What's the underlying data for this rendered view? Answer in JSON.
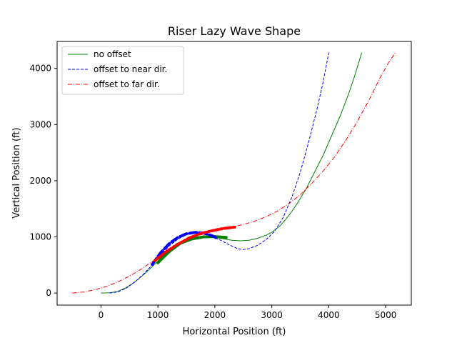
{
  "chart_data": {
    "type": "line",
    "title": "Riser Lazy Wave Shape",
    "xlabel": "Horizontal Position (ft)",
    "ylabel": "Vertical Position (ft)",
    "xlim": [
      -770,
      5450
    ],
    "ylim": [
      -215,
      4480
    ],
    "xticks": [
      0,
      1000,
      2000,
      3000,
      4000,
      5000
    ],
    "yticks": [
      0,
      1000,
      2000,
      3000,
      4000
    ],
    "xtick_labels": [
      "0",
      "1000",
      "2000",
      "3000",
      "4000",
      "5000"
    ],
    "ytick_labels": [
      "0",
      "1000",
      "2000",
      "3000",
      "4000"
    ],
    "grid": false,
    "legend_position": "top-left",
    "series": [
      {
        "name": "no offset",
        "color": "#008000",
        "dash": "solid",
        "points": [
          [
            0,
            0
          ],
          [
            150,
            5
          ],
          [
            300,
            30
          ],
          [
            450,
            100
          ],
          [
            600,
            200
          ],
          [
            750,
            330
          ],
          [
            900,
            470
          ],
          [
            1000,
            570
          ],
          [
            1100,
            680
          ],
          [
            1250,
            800
          ],
          [
            1400,
            890
          ],
          [
            1550,
            950
          ],
          [
            1700,
            985
          ],
          [
            1850,
            1000
          ],
          [
            2000,
            990
          ],
          [
            2150,
            965
          ],
          [
            2300,
            940
          ],
          [
            2450,
            930
          ],
          [
            2600,
            940
          ],
          [
            2750,
            975
          ],
          [
            2900,
            1030
          ],
          [
            3000,
            1080
          ],
          [
            3150,
            1200
          ],
          [
            3300,
            1380
          ],
          [
            3450,
            1600
          ],
          [
            3600,
            1850
          ],
          [
            3750,
            2150
          ],
          [
            3900,
            2450
          ],
          [
            4050,
            2800
          ],
          [
            4200,
            3150
          ],
          [
            4350,
            3550
          ],
          [
            4450,
            3850
          ],
          [
            4580,
            4280
          ]
        ],
        "buoyancy_segment": [
          [
            1000,
            540
          ],
          [
            1200,
            740
          ],
          [
            1400,
            890
          ],
          [
            1600,
            965
          ],
          [
            1800,
            1000
          ],
          [
            2000,
            1005
          ],
          [
            2200,
            990
          ]
        ]
      },
      {
        "name": "offset to near dir.",
        "color": "#0000ff",
        "dash": "dashed",
        "points": [
          [
            150,
            0
          ],
          [
            300,
            20
          ],
          [
            450,
            90
          ],
          [
            600,
            200
          ],
          [
            750,
            340
          ],
          [
            900,
            500
          ],
          [
            1050,
            680
          ],
          [
            1200,
            840
          ],
          [
            1350,
            960
          ],
          [
            1500,
            1040
          ],
          [
            1650,
            1070
          ],
          [
            1800,
            1060
          ],
          [
            1950,
            1010
          ],
          [
            2100,
            940
          ],
          [
            2250,
            860
          ],
          [
            2400,
            790
          ],
          [
            2500,
            775
          ],
          [
            2600,
            790
          ],
          [
            2750,
            850
          ],
          [
            2900,
            950
          ],
          [
            3050,
            1100
          ],
          [
            3200,
            1350
          ],
          [
            3350,
            1700
          ],
          [
            3500,
            2150
          ],
          [
            3650,
            2700
          ],
          [
            3800,
            3300
          ],
          [
            3900,
            3750
          ],
          [
            4000,
            4280
          ]
        ],
        "buoyancy_segment": [
          [
            900,
            510
          ],
          [
            1050,
            720
          ],
          [
            1200,
            880
          ],
          [
            1350,
            990
          ],
          [
            1500,
            1055
          ],
          [
            1650,
            1080
          ],
          [
            1800,
            1070
          ],
          [
            1950,
            1020
          ],
          [
            2050,
            970
          ]
        ]
      },
      {
        "name": "offset to far dir.",
        "color": "#ff0000",
        "dash": "dashdot",
        "points": [
          [
            -500,
            0
          ],
          [
            -300,
            20
          ],
          [
            -100,
            60
          ],
          [
            100,
            120
          ],
          [
            300,
            200
          ],
          [
            500,
            300
          ],
          [
            700,
            420
          ],
          [
            900,
            560
          ],
          [
            1100,
            700
          ],
          [
            1300,
            830
          ],
          [
            1500,
            940
          ],
          [
            1700,
            1020
          ],
          [
            1900,
            1080
          ],
          [
            2100,
            1130
          ],
          [
            2300,
            1175
          ],
          [
            2500,
            1220
          ],
          [
            2700,
            1280
          ],
          [
            2900,
            1360
          ],
          [
            3100,
            1460
          ],
          [
            3300,
            1590
          ],
          [
            3500,
            1750
          ],
          [
            3700,
            1950
          ],
          [
            3900,
            2170
          ],
          [
            4100,
            2420
          ],
          [
            4300,
            2720
          ],
          [
            4500,
            3050
          ],
          [
            4700,
            3420
          ],
          [
            4900,
            3830
          ],
          [
            5050,
            4100
          ],
          [
            5170,
            4280
          ]
        ],
        "buoyancy_segment": [
          [
            950,
            580
          ],
          [
            1150,
            740
          ],
          [
            1350,
            870
          ],
          [
            1550,
            980
          ],
          [
            1750,
            1060
          ],
          [
            1950,
            1110
          ],
          [
            2150,
            1150
          ],
          [
            2350,
            1175
          ]
        ]
      }
    ]
  }
}
